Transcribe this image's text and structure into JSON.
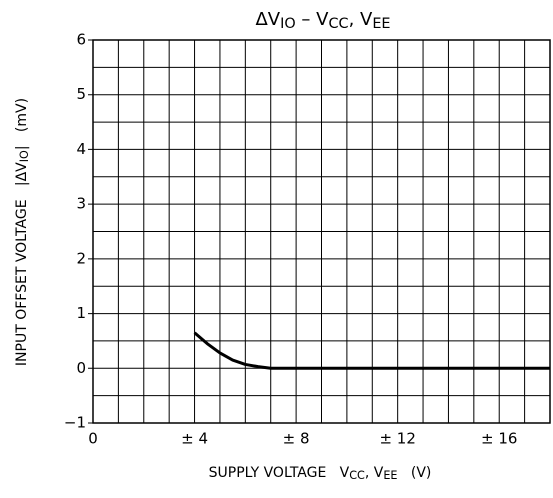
{
  "chart_data": {
    "type": "line",
    "title": [
      "ΔV",
      "IO",
      " – V",
      "CC",
      ", V",
      "EE"
    ],
    "x_label": [
      "SUPPLY VOLTAGE   V",
      "CC",
      ", V",
      "EE",
      "   (V)"
    ],
    "y_label": [
      "INPUT OFFSET VOLTAGE   |ΔV",
      "IO",
      "|   (mV)"
    ],
    "x": [
      4,
      4.5,
      5,
      5.5,
      6,
      6.5,
      7,
      18
    ],
    "series": [
      {
        "color": "#000000",
        "values": [
          0.65,
          0.45,
          0.28,
          0.15,
          0.07,
          0.03,
          0,
          0
        ]
      }
    ],
    "xlim": [
      0,
      18
    ],
    "ylim": [
      -1,
      6
    ],
    "xticks": [
      0,
      {
        "value": 4,
        "label": "± 4"
      },
      {
        "value": 8,
        "label": "± 8"
      },
      {
        "value": 12,
        "label": "± 12"
      },
      {
        "value": 16,
        "label": "± 16"
      }
    ],
    "yticks": [
      {
        "value": -1,
        "label": "−1"
      },
      0,
      1,
      2,
      3,
      4,
      5,
      6
    ],
    "xminorticks": [
      1,
      2,
      3,
      5,
      6,
      7,
      9,
      10,
      11,
      13,
      14,
      15,
      17,
      18
    ],
    "yminorticks": [
      -0.5,
      0.5,
      1.5,
      2.5,
      3.5,
      4.5,
      5.5
    ],
    "grid": true
  }
}
